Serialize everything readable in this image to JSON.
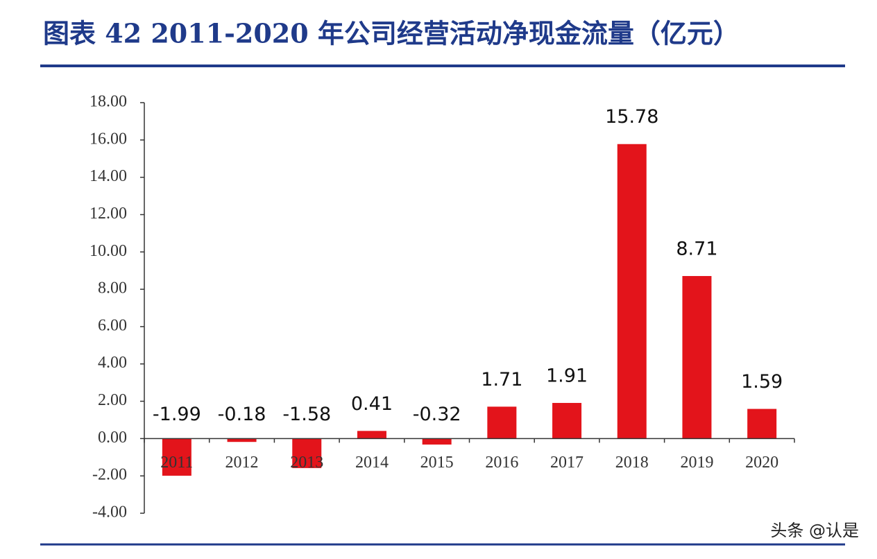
{
  "chart_data": {
    "type": "bar",
    "title": "图表 42  2011-2020 年公司经营活动净现金流量（亿元）",
    "categories": [
      "2011",
      "2012",
      "2013",
      "2014",
      "2015",
      "2016",
      "2017",
      "2018",
      "2019",
      "2020"
    ],
    "values": [
      -1.99,
      -0.18,
      -1.58,
      0.41,
      -0.32,
      1.71,
      1.91,
      15.78,
      8.71,
      1.59
    ],
    "color": "#e3141b",
    "ylim": [
      -4,
      18
    ],
    "yticks": [
      {
        "value": -4,
        "label": "-4.00"
      },
      {
        "value": -2,
        "label": "-2.00"
      },
      {
        "value": 0,
        "label": "0.00"
      },
      {
        "value": 2,
        "label": "2.00"
      },
      {
        "value": 4,
        "label": "4.00"
      },
      {
        "value": 6,
        "label": "6.00"
      },
      {
        "value": 8,
        "label": "8.00"
      },
      {
        "value": 10,
        "label": "10.00"
      },
      {
        "value": 12,
        "label": "12.00"
      },
      {
        "value": 14,
        "label": "14.00"
      },
      {
        "value": 16,
        "label": "16.00"
      },
      {
        "value": 18,
        "label": "18.00"
      }
    ],
    "grid": false,
    "watermark": "头条 @认是"
  }
}
